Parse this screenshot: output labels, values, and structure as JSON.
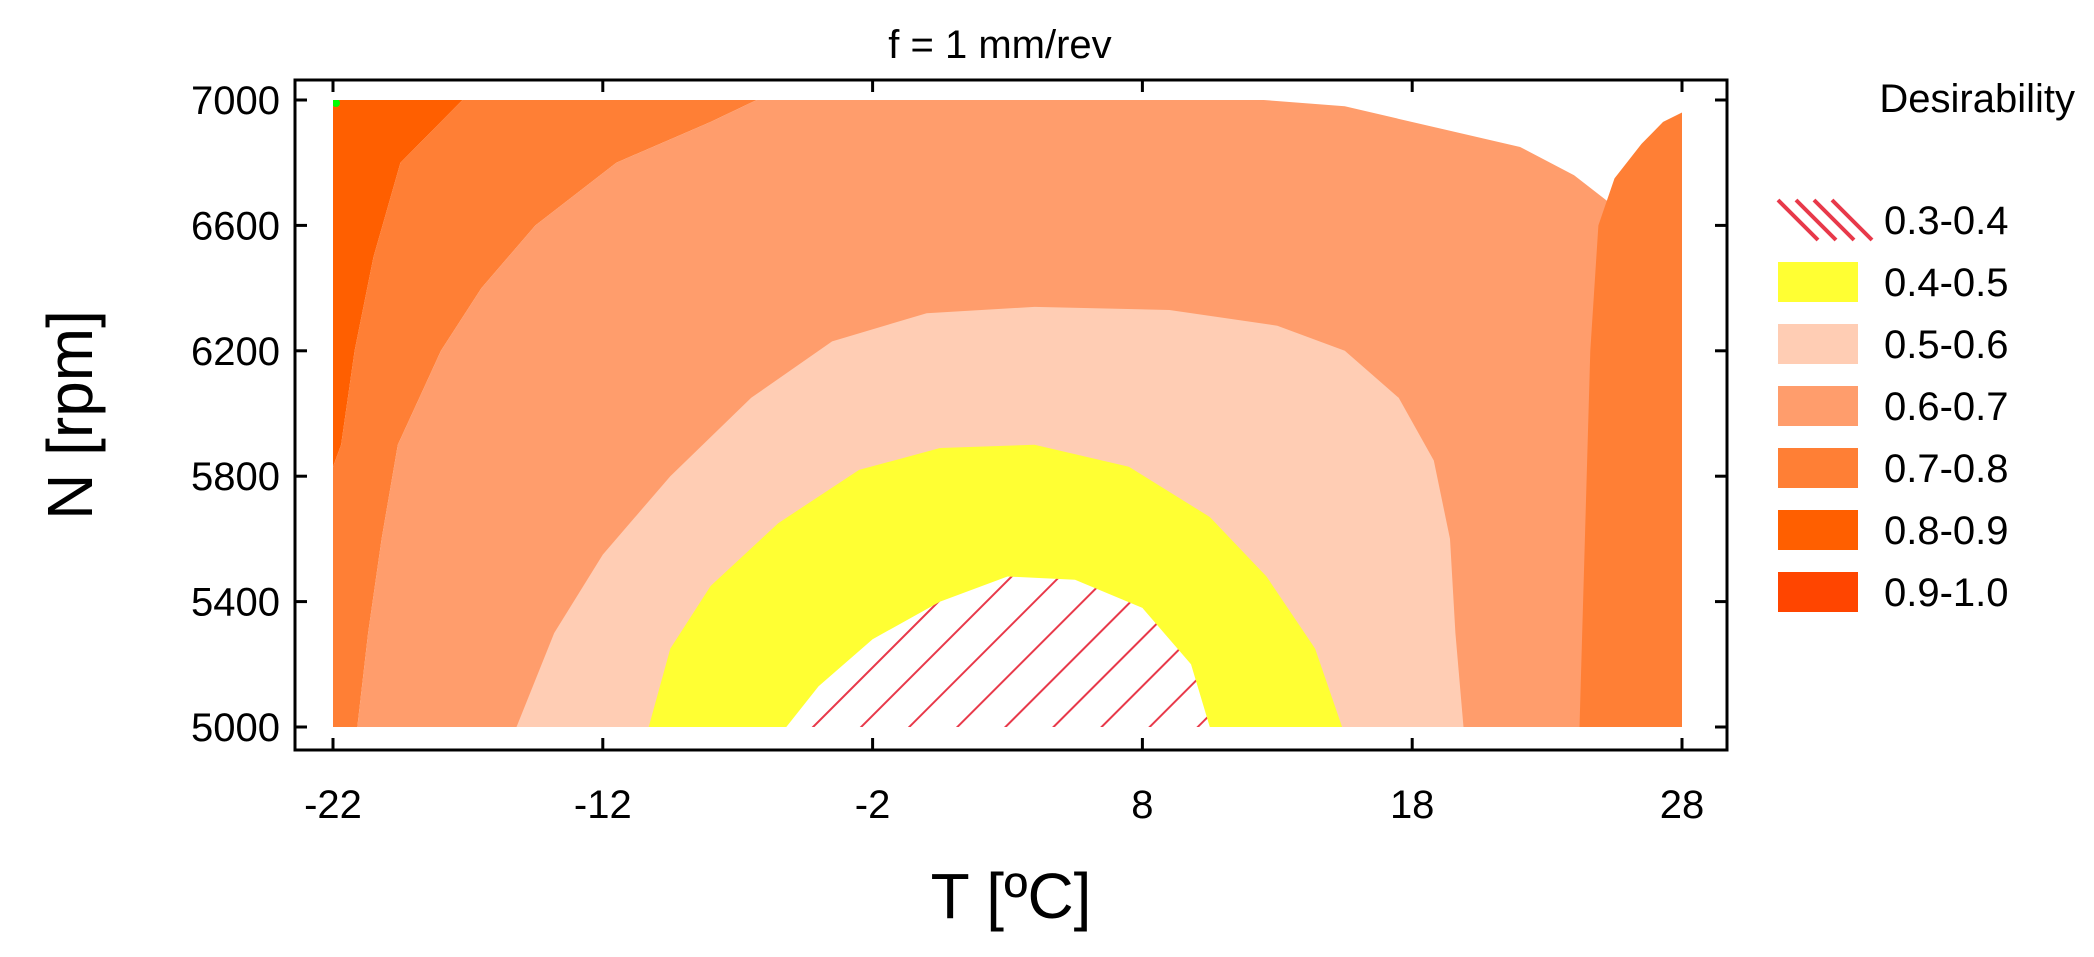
{
  "chart_data": {
    "type": "contour",
    "title": "f = 1 mm/rev",
    "xlabel": "T [ºC]",
    "ylabel": "N [rpm]",
    "xlim": [
      -22,
      28
    ],
    "ylim": [
      5000,
      7000
    ],
    "x_ticks": [
      "-22",
      "-12",
      "-2",
      "8",
      "18",
      "28"
    ],
    "y_ticks": [
      "5000",
      "5400",
      "5800",
      "6200",
      "6600",
      "7000"
    ],
    "legend_title": "Desirability",
    "legend_position": "right",
    "levels": [
      {
        "label": "0.3-0.4",
        "color": "#e8394a",
        "pattern": "hatch"
      },
      {
        "label": "0.4-0.5",
        "color": "#ffff33",
        "pattern": "solid"
      },
      {
        "label": "0.5-0.6",
        "color": "#ffcdb4",
        "pattern": "solid"
      },
      {
        "label": "0.6-0.7",
        "color": "#ff9d6c",
        "pattern": "solid"
      },
      {
        "label": "0.7-0.8",
        "color": "#ff7f35",
        "pattern": "solid"
      },
      {
        "label": "0.8-0.9",
        "color": "#ff5f00",
        "pattern": "solid"
      },
      {
        "label": "0.9-1.0",
        "color": "#ff4500",
        "pattern": "solid"
      }
    ],
    "regions": [
      {
        "level": "0.8-0.9",
        "points": [
          [
            -22,
            7000
          ],
          [
            -17.2,
            7000
          ],
          [
            -18,
            6930
          ],
          [
            -19.5,
            6800
          ],
          [
            -20.5,
            6500
          ],
          [
            -21.2,
            6200
          ],
          [
            -21.7,
            5900
          ],
          [
            -22,
            5830
          ]
        ]
      },
      {
        "level": "0.7-0.8",
        "points": [
          [
            -17.2,
            7000
          ],
          [
            -6.3,
            7000
          ],
          [
            -8,
            6930
          ],
          [
            -11.5,
            6800
          ],
          [
            -14.5,
            6600
          ],
          [
            -16.5,
            6400
          ],
          [
            -18,
            6200
          ],
          [
            -19.6,
            5900
          ],
          [
            -20.2,
            5600
          ],
          [
            -20.7,
            5300
          ],
          [
            -21.1,
            5000
          ],
          [
            -22,
            5000
          ],
          [
            -22,
            5830
          ],
          [
            -21.7,
            5900
          ],
          [
            -21.2,
            6200
          ],
          [
            -20.5,
            6500
          ],
          [
            -19.5,
            6800
          ],
          [
            -18,
            6930
          ]
        ]
      },
      {
        "level": "0.6-0.7",
        "points": [
          [
            -6.3,
            7000
          ],
          [
            12.5,
            7000
          ],
          [
            15.5,
            6980
          ],
          [
            19.5,
            6900
          ],
          [
            22,
            6850
          ],
          [
            24,
            6760
          ],
          [
            25.5,
            6660
          ],
          [
            26.5,
            6500
          ],
          [
            27,
            6300
          ],
          [
            27.2,
            5800
          ],
          [
            27.4,
            5000
          ],
          [
            -21.1,
            5000
          ],
          [
            -20.7,
            5300
          ],
          [
            -20.2,
            5600
          ],
          [
            -19.6,
            5900
          ],
          [
            -18,
            6200
          ],
          [
            -16.5,
            6400
          ],
          [
            -14.5,
            6600
          ],
          [
            -11.5,
            6800
          ],
          [
            -8,
            6930
          ]
        ]
      },
      {
        "level": "0.7-0.8",
        "points": [
          [
            24.2,
            5000
          ],
          [
            24.4,
            5600
          ],
          [
            24.6,
            6200
          ],
          [
            24.9,
            6600
          ],
          [
            25.5,
            6750
          ],
          [
            26.5,
            6860
          ],
          [
            27.3,
            6930
          ],
          [
            28,
            6960
          ],
          [
            28,
            5000
          ]
        ]
      },
      {
        "level": "0.5-0.6",
        "points": [
          [
            -15.2,
            5000
          ],
          [
            -13.8,
            5300
          ],
          [
            -12,
            5550
          ],
          [
            -9.5,
            5800
          ],
          [
            -6.5,
            6050
          ],
          [
            -3.5,
            6230
          ],
          [
            0,
            6320
          ],
          [
            4,
            6340
          ],
          [
            9,
            6330
          ],
          [
            13,
            6280
          ],
          [
            15.5,
            6200
          ],
          [
            17.5,
            6050
          ],
          [
            18.8,
            5850
          ],
          [
            19.4,
            5600
          ],
          [
            19.6,
            5300
          ],
          [
            19.9,
            5000
          ]
        ]
      },
      {
        "level": "0.4-0.5",
        "points": [
          [
            -10.3,
            5000
          ],
          [
            -9.5,
            5250
          ],
          [
            -8,
            5450
          ],
          [
            -5.5,
            5650
          ],
          [
            -2.5,
            5820
          ],
          [
            0.5,
            5890
          ],
          [
            4,
            5900
          ],
          [
            7.5,
            5830
          ],
          [
            10.5,
            5670
          ],
          [
            12.6,
            5480
          ],
          [
            14.4,
            5250
          ],
          [
            15.4,
            5000
          ]
        ]
      },
      {
        "level": "0.3-0.4",
        "points": [
          [
            -5.2,
            5000
          ],
          [
            -4,
            5130
          ],
          [
            -2,
            5280
          ],
          [
            0.5,
            5400
          ],
          [
            3,
            5480
          ],
          [
            5.5,
            5470
          ],
          [
            8,
            5380
          ],
          [
            9.8,
            5200
          ],
          [
            10.5,
            5000
          ]
        ]
      }
    ],
    "optimum_point": {
      "x": -22,
      "y": 7000,
      "color": "#00ff00"
    }
  }
}
